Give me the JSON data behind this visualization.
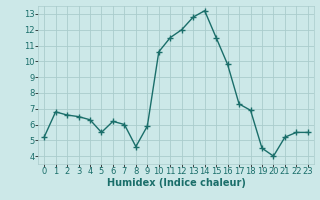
{
  "xlabel": "Humidex (Indice chaleur)",
  "ylabel": "",
  "bg_color": "#cce8e8",
  "grid_color": "#aacccc",
  "line_color": "#1a6e6a",
  "x_data": [
    0,
    1,
    2,
    3,
    4,
    5,
    6,
    7,
    8,
    9,
    10,
    11,
    12,
    13,
    14,
    15,
    16,
    17,
    18,
    19,
    20,
    21,
    22,
    23
  ],
  "y_data": [
    5.2,
    6.8,
    6.6,
    6.5,
    6.3,
    5.5,
    6.2,
    6.0,
    4.6,
    5.9,
    10.6,
    11.5,
    12.0,
    12.8,
    13.2,
    11.5,
    9.8,
    7.3,
    6.9,
    4.5,
    4.0,
    5.2,
    5.5,
    5.5
  ],
  "xlim": [
    -0.5,
    23.5
  ],
  "ylim": [
    3.5,
    13.5
  ],
  "yticks": [
    4,
    5,
    6,
    7,
    8,
    9,
    10,
    11,
    12,
    13
  ],
  "xticks": [
    0,
    1,
    2,
    3,
    4,
    5,
    6,
    7,
    8,
    9,
    10,
    11,
    12,
    13,
    14,
    15,
    16,
    17,
    18,
    19,
    20,
    21,
    22,
    23
  ],
  "marker": "+",
  "marker_size": 4,
  "line_width": 1.0,
  "xlabel_fontsize": 7,
  "tick_fontsize": 6,
  "ytick_fontsize": 6
}
